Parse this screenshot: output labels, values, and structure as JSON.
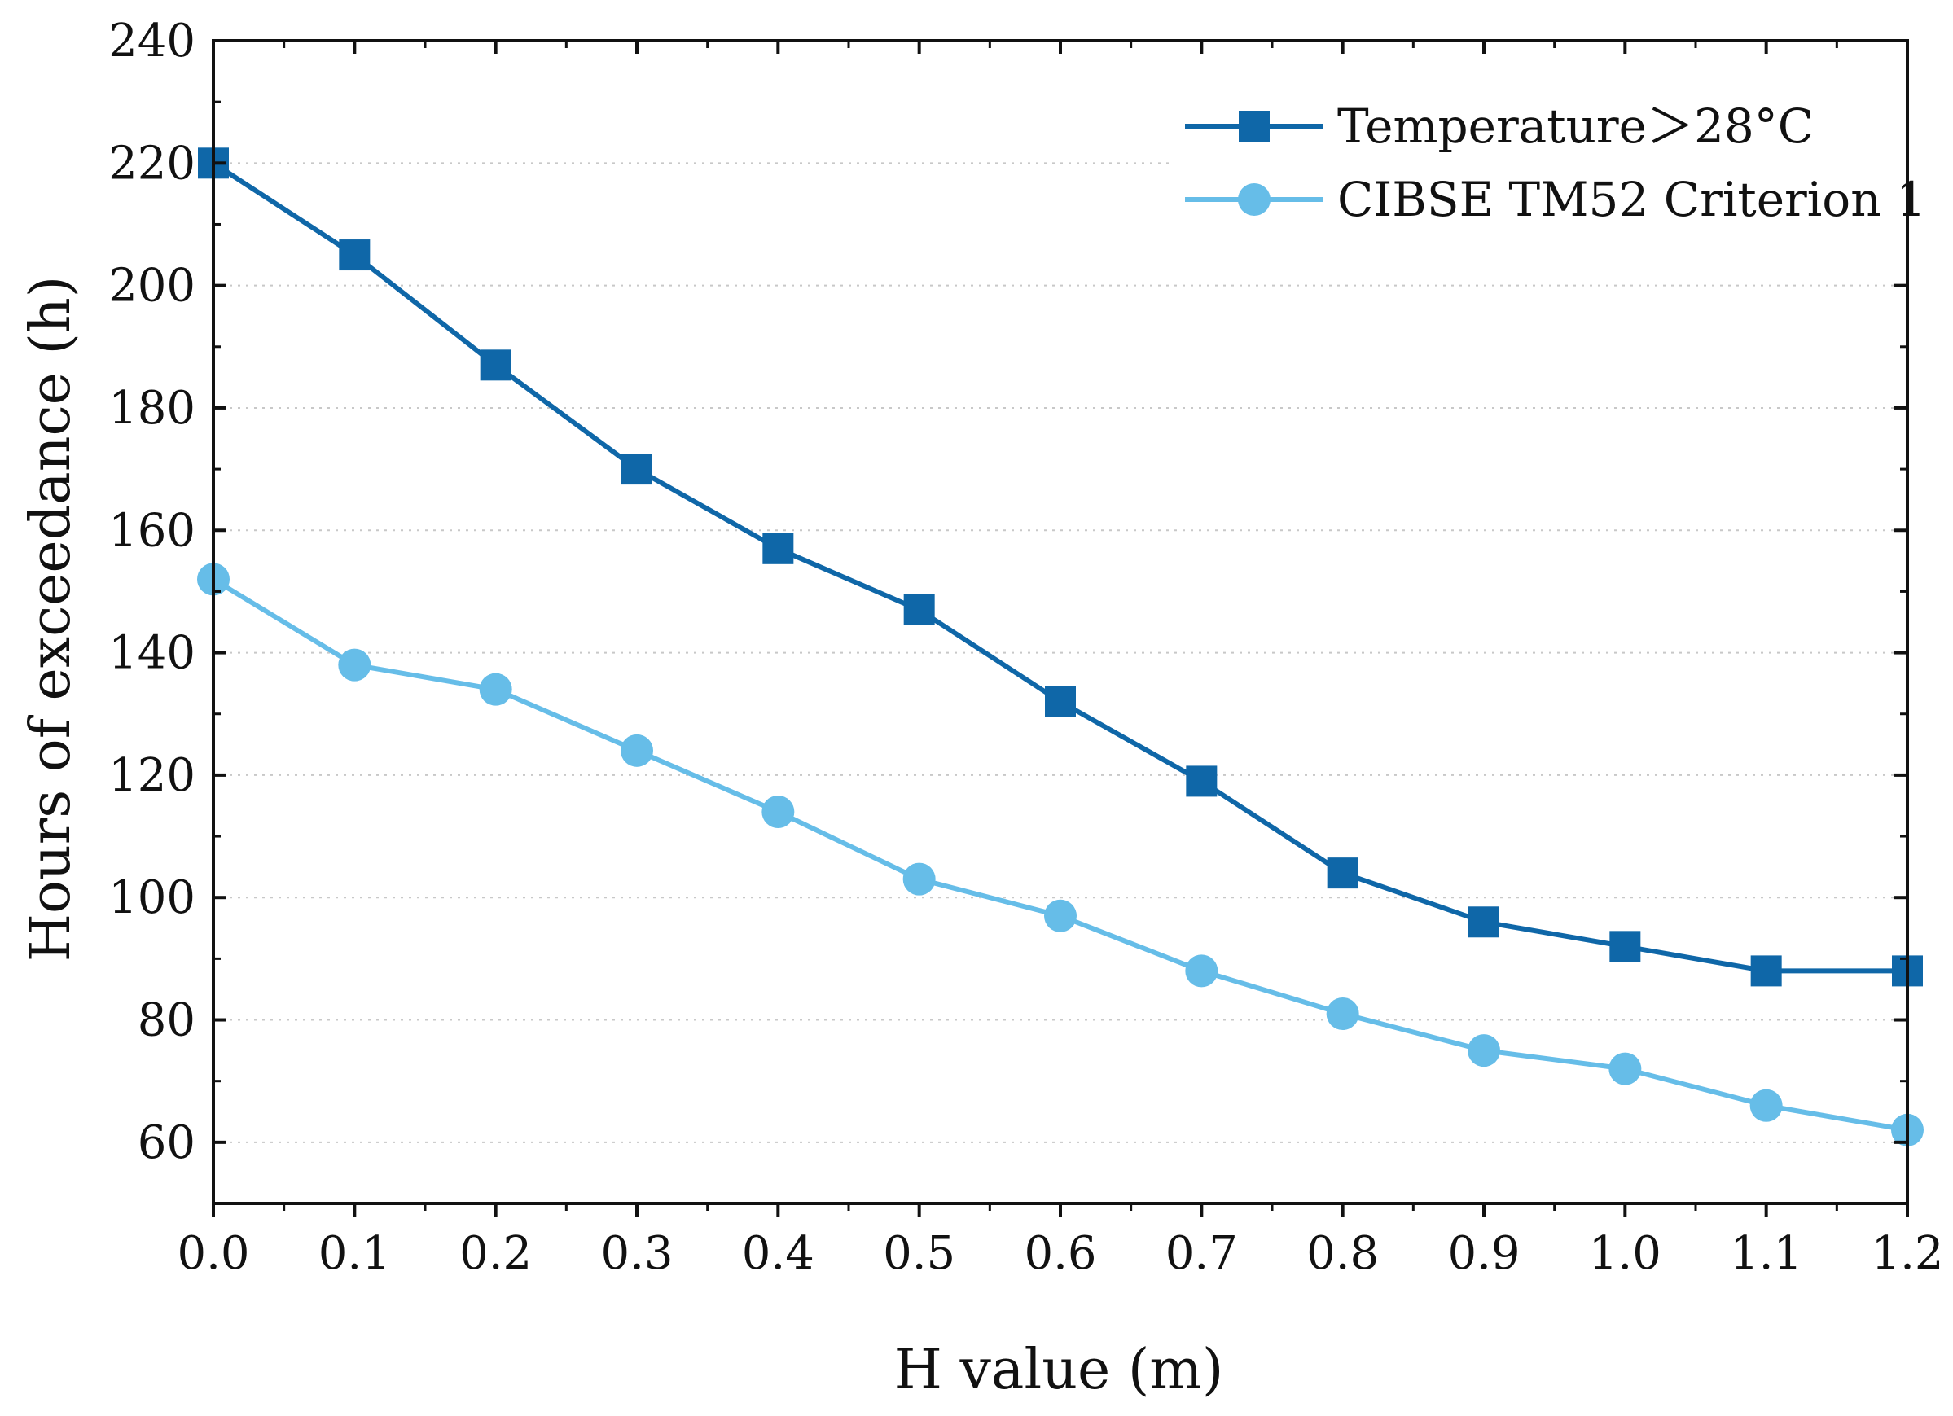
{
  "chart_data": {
    "type": "line",
    "title": "",
    "xlabel": "H value (m)",
    "ylabel": "Hours of exceedance (h)",
    "xlim": [
      0.0,
      1.2
    ],
    "ylim": [
      50,
      240
    ],
    "x": [
      0.0,
      0.1,
      0.2,
      0.3,
      0.4,
      0.5,
      0.6,
      0.7,
      0.8,
      0.9,
      1.0,
      1.1,
      1.2
    ],
    "x_tick_labels": [
      "0.0",
      "0.1",
      "0.2",
      "0.3",
      "0.4",
      "0.5",
      "0.6",
      "0.7",
      "0.8",
      "0.9",
      "1.0",
      "1.1",
      "1.2"
    ],
    "y_ticks": [
      60,
      80,
      100,
      120,
      140,
      160,
      180,
      200,
      220,
      240
    ],
    "y_tick_labels": [
      "60",
      "80",
      "100",
      "120",
      "140",
      "160",
      "180",
      "200",
      "220",
      "240"
    ],
    "grid": "horizontal dotted",
    "legend_position": "top-right",
    "series": [
      {
        "name": "Temperature＞28°C",
        "marker": "square",
        "color": "#0f67a8",
        "values": [
          220,
          205,
          187,
          170,
          157,
          147,
          132,
          119,
          104,
          96,
          92,
          88,
          88
        ]
      },
      {
        "name": "CIBSE TM52 Criterion 1",
        "marker": "circle",
        "color": "#66bde8",
        "values": [
          152,
          138,
          134,
          124,
          114,
          103,
          97,
          88,
          81,
          75,
          72,
          66,
          62
        ]
      }
    ]
  }
}
